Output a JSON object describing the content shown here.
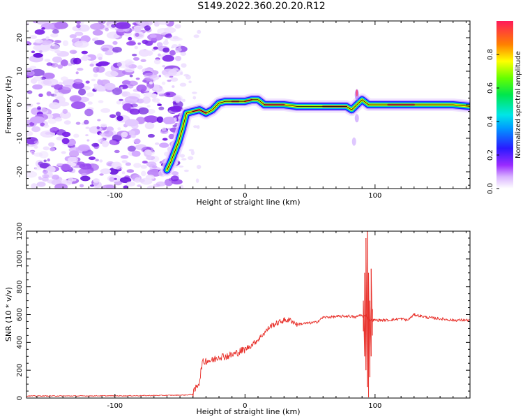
{
  "title": "S149.2022.360.20.20.R12",
  "colors": {
    "snr_line": "#e8302a",
    "ridge_glow": "#1a1aff",
    "noise_purple": "#7b22e8",
    "axis": "#000000"
  },
  "chart_data": [
    {
      "type": "heatmap",
      "xlabel": "Height of straight line (km)",
      "ylabel": "Frequency (Hz)",
      "xlim": [
        -168,
        173
      ],
      "ylim": [
        -25,
        25
      ],
      "x_ticks": [
        -100,
        0,
        100
      ],
      "y_ticks": [
        -20,
        -10,
        0,
        10,
        20
      ],
      "x_tick_labels": [
        "-100",
        "0",
        "100"
      ],
      "y_tick_labels": [
        "-20",
        "-10",
        "0",
        "10",
        "20"
      ],
      "noise_region_x": [
        -168,
        -52
      ],
      "ridge": {
        "x": [
          -60,
          -57,
          -54,
          -51,
          -48,
          -45,
          -40,
          -35,
          -30,
          -25,
          -20,
          -15,
          -10,
          -5,
          0,
          5,
          10,
          15,
          20,
          30,
          40,
          50,
          60,
          70,
          78,
          82,
          86,
          90,
          95,
          100,
          110,
          120,
          130,
          140,
          150,
          160,
          173
        ],
        "y": [
          -19.5,
          -17,
          -14,
          -11,
          -7,
          -2.5,
          -2,
          -1.5,
          -2.5,
          -1.5,
          0.5,
          1,
          1,
          1,
          1,
          1.5,
          1.5,
          0,
          0,
          0,
          -0.5,
          -0.5,
          -0.5,
          -0.5,
          -0.5,
          -1.5,
          0,
          1.5,
          0,
          0,
          0,
          0,
          0,
          0,
          0,
          0,
          -0.5
        ]
      },
      "colorbar": {
        "label": "Normalized spectral amplitude",
        "range": [
          0,
          1
        ],
        "ticks": [
          0.0,
          0.2,
          0.4,
          0.6,
          0.8
        ],
        "tick_labels": [
          "0.0",
          "0.2",
          "0.4",
          "0.6",
          "0.8"
        ]
      }
    },
    {
      "type": "line",
      "xlabel": "Height of straight line (km)",
      "ylabel": "SNR (10 * v/v)",
      "xlim": [
        -168,
        173
      ],
      "ylim": [
        0,
        1200
      ],
      "x_ticks": [
        -100,
        0,
        100
      ],
      "y_ticks": [
        0,
        200,
        400,
        600,
        800,
        1000,
        1200
      ],
      "x_tick_labels": [
        "-100",
        "0",
        "100"
      ],
      "y_tick_labels": [
        "0",
        "200",
        "400",
        "600",
        "800",
        "1000",
        "1200"
      ],
      "series": [
        {
          "x": [
            -168,
            -150,
            -130,
            -110,
            -90,
            -70,
            -55,
            -45,
            -40,
            -35,
            -33,
            -30,
            -25,
            -20,
            -15,
            -10,
            -5,
            0,
            5,
            10,
            15,
            20,
            25,
            30,
            35,
            40,
            50,
            55,
            60,
            70,
            80,
            85,
            89,
            91,
            93,
            95,
            97,
            100,
            110,
            120,
            125,
            130,
            140,
            150,
            160,
            173
          ],
          "y": [
            15,
            15,
            15,
            16,
            16,
            18,
            20,
            22,
            30,
            120,
            250,
            270,
            270,
            300,
            300,
            310,
            330,
            350,
            380,
            420,
            470,
            520,
            540,
            560,
            560,
            530,
            540,
            545,
            580,
            585,
            590,
            580,
            600,
            580,
            600,
            560,
            560,
            560,
            560,
            570,
            560,
            600,
            580,
            570,
            560,
            560
          ]
        }
      ],
      "spike": {
        "x": [
          91,
          92,
          93,
          94,
          95,
          96,
          97,
          98
        ],
        "y_high": [
          700,
          900,
          1150,
          1200,
          900,
          700,
          930,
          640
        ],
        "y_low": [
          480,
          300,
          200,
          80,
          5,
          150,
          300,
          450
        ]
      }
    }
  ]
}
